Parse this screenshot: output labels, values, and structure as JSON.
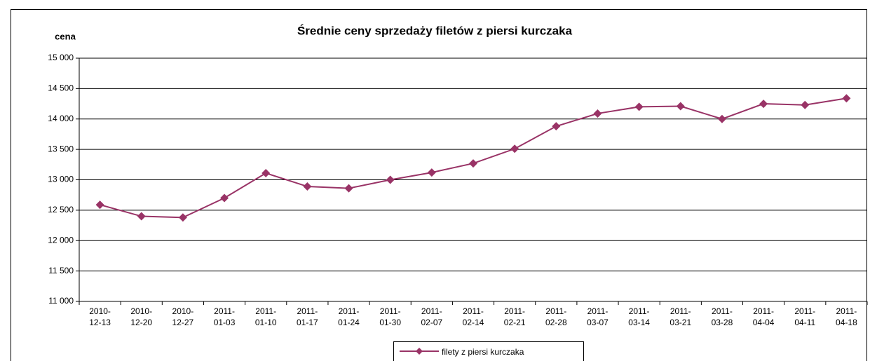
{
  "chart_data": {
    "type": "line",
    "title": "Średnie ceny sprzedaży filetów z piersi kurczaka",
    "y_label": "cena",
    "categories": [
      "2010-12-13",
      "2010-12-20",
      "2010-12-27",
      "2011-01-03",
      "2011-01-10",
      "2011-01-17",
      "2011-01-24",
      "2011-01-30",
      "2011-02-07",
      "2011-02-14",
      "2011-02-21",
      "2011-02-28",
      "2011-03-07",
      "2011-03-14",
      "2011-03-21",
      "2011-03-28",
      "2011-04-04",
      "2011-04-11",
      "2011-04-18"
    ],
    "series": [
      {
        "name": "filety z piersi kurczaka",
        "color": "#993366",
        "values": [
          12590,
          12400,
          12380,
          12700,
          13110,
          12890,
          12860,
          13000,
          13120,
          13270,
          13510,
          13880,
          14090,
          14200,
          14210,
          14000,
          14250,
          14230,
          14340
        ]
      }
    ],
    "ylim": [
      11000,
      15000
    ],
    "yticks": [
      {
        "value": 11000,
        "label": "11 000"
      },
      {
        "value": 11500,
        "label": "11 500"
      },
      {
        "value": 12000,
        "label": "12 000"
      },
      {
        "value": 12500,
        "label": "12 500"
      },
      {
        "value": 13000,
        "label": "13 000"
      },
      {
        "value": 13500,
        "label": "13 500"
      },
      {
        "value": 14000,
        "label": "14 000"
      },
      {
        "value": 14500,
        "label": "14 500"
      },
      {
        "value": 15000,
        "label": "15 000"
      }
    ],
    "grid": true
  }
}
